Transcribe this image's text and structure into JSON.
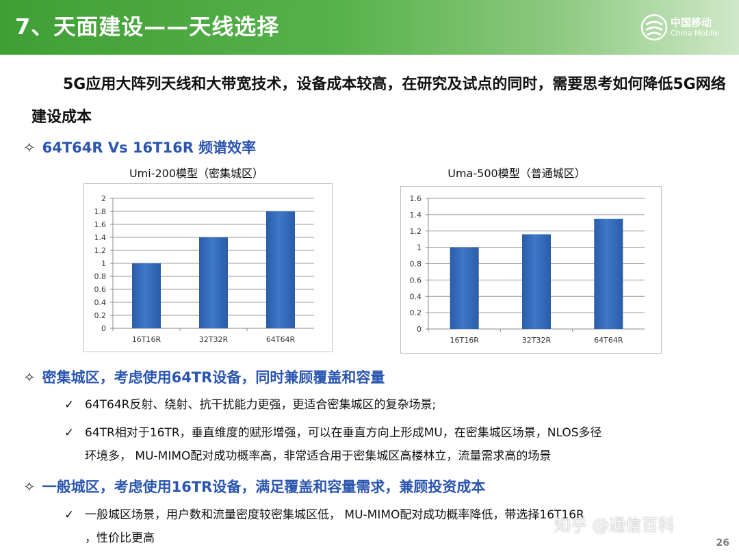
{
  "header": {
    "title": "7、天面建设——天线选择"
  },
  "logo": {
    "cn": "中国移动",
    "en": "China Mobile"
  },
  "intro": "5G应用大阵列天线和大带宽技术，设备成本较高，在研究及试点的同时，需要思考如何降低5G网络建设成本",
  "bullets": {
    "b1": "64T64R Vs 16T16R 频谱效率",
    "b2": "密集城区，考虑使用64TR设备，同时兼顾覆盖和容量",
    "b3": "一般城区，考虑使用16TR设备，满足覆盖和容量需求，兼顾投资成本"
  },
  "checks": {
    "c1": "64T64R反射、绕射、抗干扰能力更强，更适合密集城区的复杂场景;",
    "c2_line1": "64TR相对于16TR，垂直维度的赋形增强，可以在垂直方向上形成MU，在密集城区场景，NLOS多径",
    "c2_line2": "环境多， MU-MIMO配对成功概率高，非常适合用于密集城区高楼林立，流量需求高的场景",
    "c3_line1": "一般城区场景，用户数和流量密度较密集城区低， MU-MIMO配对成功概率降低，带选择16T16R",
    "c3_line2": "，性价比更高"
  },
  "watermark": "知乎 @通信百科",
  "page_number": "26",
  "colors": {
    "bar": "#3f78c9",
    "header_green": "#3f9f35",
    "bullet_blue": "#2a55b0"
  },
  "chart_data": [
    {
      "type": "bar",
      "title": "Umi-200模型（密集城区）",
      "categories": [
        "16T16R",
        "32T32R",
        "64T64R"
      ],
      "values": [
        1.0,
        1.4,
        1.8
      ],
      "ylim": [
        0,
        2
      ],
      "yticks": [
        "0",
        "0.2",
        "0.4",
        "0.6",
        "0.8",
        "1",
        "1.2",
        "1.4",
        "1.6",
        "1.8",
        "2"
      ],
      "grid": true
    },
    {
      "type": "bar",
      "title": "Uma-500模型（普通城区）",
      "categories": [
        "16T16R",
        "32T32R",
        "64T64R"
      ],
      "values": [
        1.0,
        1.16,
        1.35
      ],
      "ylim": [
        0,
        1.6
      ],
      "yticks": [
        "0",
        "0.2",
        "0.4",
        "0.6",
        "0.8",
        "1",
        "1.2",
        "1.4",
        "1.6"
      ],
      "grid": true
    }
  ]
}
